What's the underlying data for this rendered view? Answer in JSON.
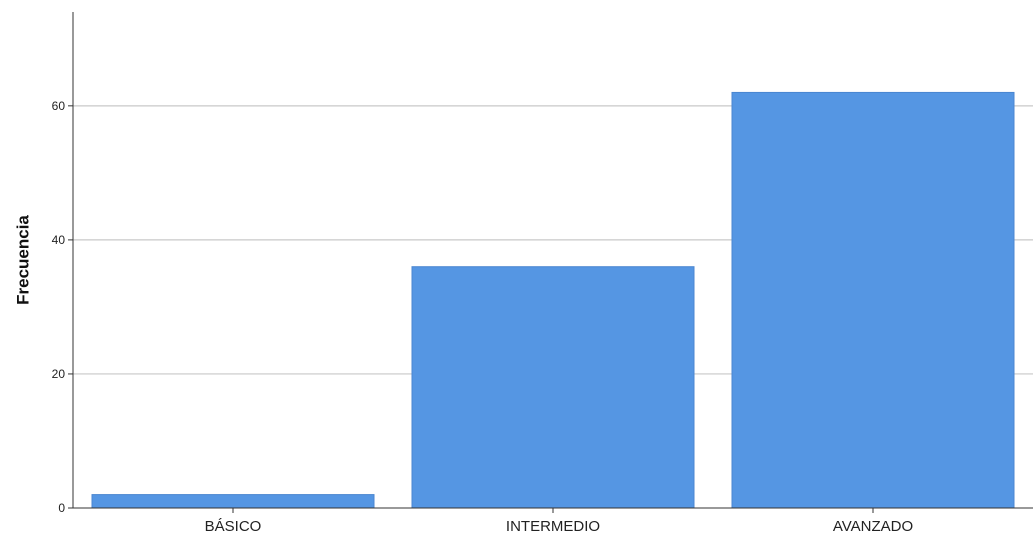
{
  "chart_data": {
    "type": "bar",
    "categories": [
      "BÁSICO",
      "INTERMEDIO",
      "AVANZADO"
    ],
    "values": [
      2,
      36,
      62
    ],
    "xlabel": "",
    "ylabel": "Frecuencia",
    "ylim": [
      0,
      74
    ],
    "yticks": [
      0,
      20,
      40,
      60
    ],
    "grid": true,
    "bar_color": "#5596e3",
    "bar_edge_color": "#4a86d0",
    "grid_color": "#c8c8c8",
    "axis_color": "#333333"
  }
}
